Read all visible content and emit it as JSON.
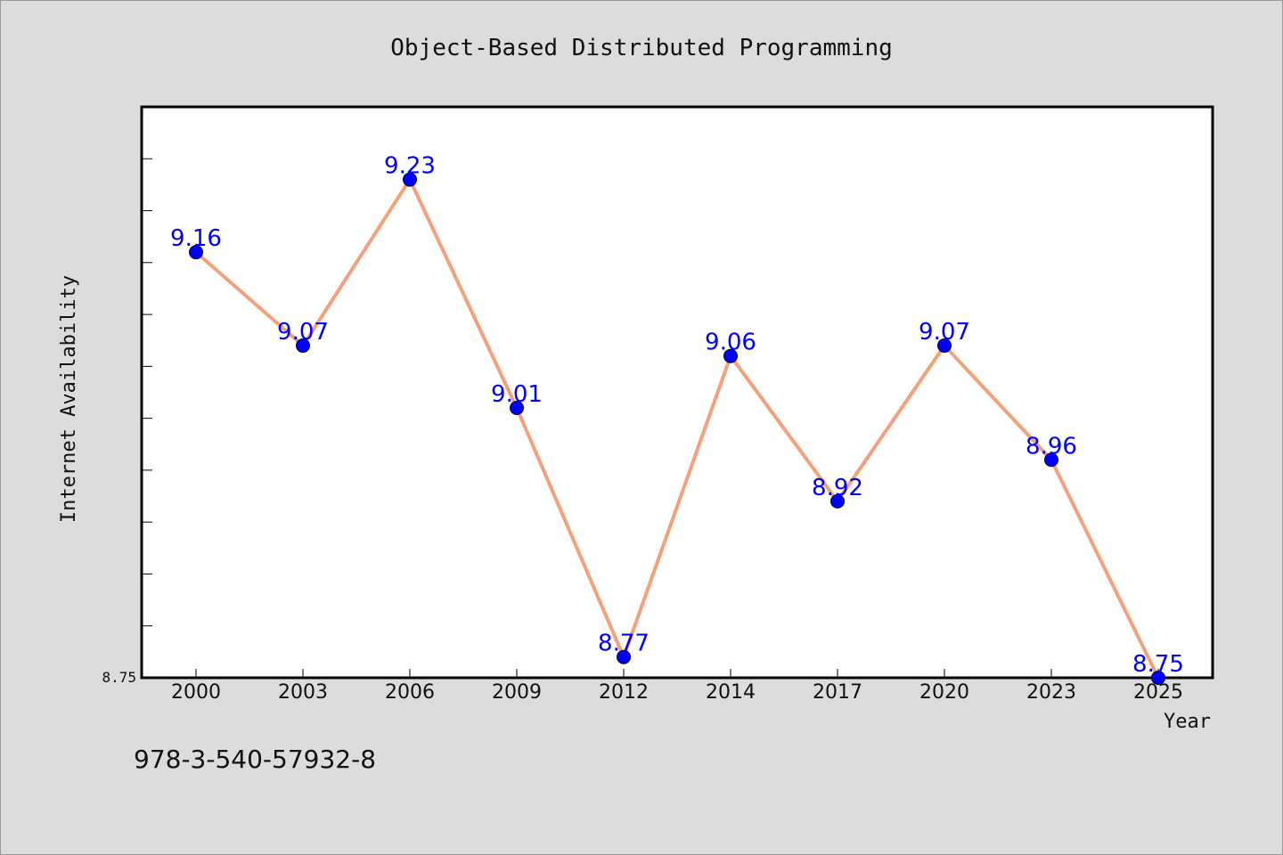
{
  "isbn": "978-3-540-57932-8",
  "colors": {
    "background": "#dcdcdc",
    "plot_background": "#ffffff",
    "line": "#f4a07a",
    "marker": "#0000ff",
    "data_label": "#0000ff"
  },
  "chart_data": {
    "type": "line",
    "title": "Object-Based Distributed Programming",
    "xlabel": "Year",
    "ylabel": "Internet Availability",
    "categories": [
      "2000",
      "2003",
      "2006",
      "2009",
      "2012",
      "2014",
      "2017",
      "2020",
      "2023",
      "2025"
    ],
    "series": [
      {
        "values": [
          9.16,
          9.07,
          9.23,
          9.01,
          8.77,
          9.06,
          8.92,
          9.07,
          8.96,
          8.75
        ],
        "data_labels": [
          "9.16",
          "9.07",
          "9.23",
          "9.01",
          "8.77",
          "9.06",
          "8.92",
          "9.07",
          "8.96",
          "8.75"
        ]
      }
    ],
    "ylim": [
      8.75,
      9.3
    ],
    "yticks_labeled": [
      "8.75"
    ],
    "grid": false,
    "legend": "none"
  }
}
